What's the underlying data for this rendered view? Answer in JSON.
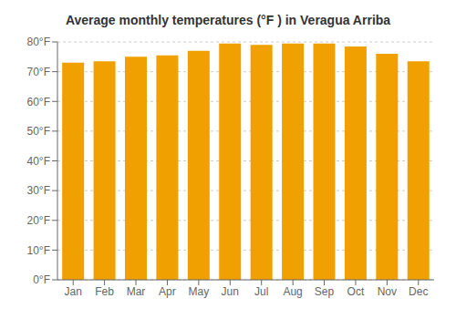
{
  "chart_data": {
    "type": "bar",
    "title": "Average monthly temperatures (°F ) in Veragua Arriba",
    "categories": [
      "Jan",
      "Feb",
      "Mar",
      "Apr",
      "May",
      "Jun",
      "Jul",
      "Aug",
      "Sep",
      "Oct",
      "Nov",
      "Dec"
    ],
    "values": [
      73,
      73.5,
      75,
      75.5,
      77,
      79.5,
      79,
      79.5,
      79.5,
      78.5,
      76,
      73.5
    ],
    "color": "#F0A000",
    "ylim": [
      0,
      80
    ],
    "yticks": [
      {
        "value": 0,
        "label": "0°F"
      },
      {
        "value": 10,
        "label": "10°F"
      },
      {
        "value": 20,
        "label": "20°F"
      },
      {
        "value": 30,
        "label": "30°F"
      },
      {
        "value": 40,
        "label": "40°F"
      },
      {
        "value": 50,
        "label": "50°F"
      },
      {
        "value": 60,
        "label": "60°F"
      },
      {
        "value": 70,
        "label": "70°F"
      },
      {
        "value": 80,
        "label": "80°F"
      }
    ],
    "grid": true
  }
}
